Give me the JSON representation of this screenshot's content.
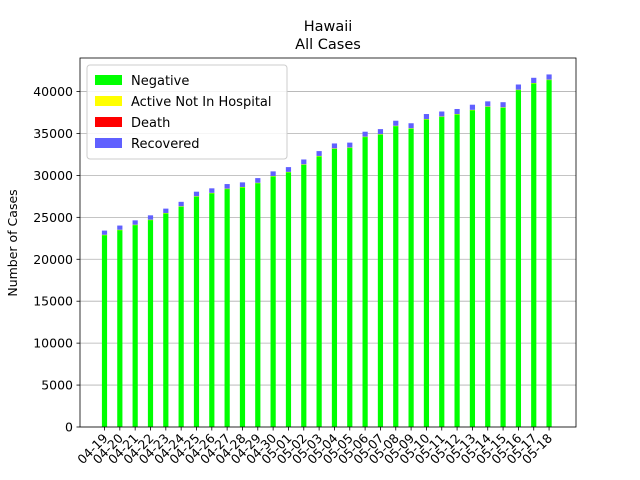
{
  "chart_data": {
    "type": "bar",
    "stacked": true,
    "title": "Hawaii",
    "subtitle": "All Cases",
    "xlabel": "",
    "ylabel": "Number of Cases",
    "ylim": [
      0,
      44000
    ],
    "yticks": [
      0,
      5000,
      10000,
      15000,
      20000,
      25000,
      30000,
      35000,
      40000
    ],
    "grid": "horizontal",
    "legend_position": "top-left",
    "categories": [
      "04-19",
      "04-20",
      "04-21",
      "04-22",
      "04-23",
      "04-24",
      "04-25",
      "04-26",
      "04-27",
      "04-28",
      "04-29",
      "04-30",
      "05-01",
      "05-02",
      "05-03",
      "05-04",
      "05-05",
      "05-06",
      "05-07",
      "05-08",
      "05-09",
      "05-10",
      "05-11",
      "05-12",
      "05-13",
      "05-14",
      "05-15",
      "05-16",
      "05-17",
      "05-18"
    ],
    "series": [
      {
        "name": "Negative",
        "color": "#00ff00",
        "values": [
          22900,
          23500,
          24100,
          24700,
          25500,
          26300,
          27500,
          27900,
          28400,
          28600,
          29100,
          29900,
          30400,
          31300,
          32300,
          33200,
          33300,
          34600,
          34900,
          35900,
          35600,
          36700,
          37000,
          37300,
          37800,
          38200,
          38100,
          40200,
          41000,
          41400
        ]
      },
      {
        "name": "Active Not In Hospital",
        "color": "#ffff00",
        "values": [
          20,
          20,
          20,
          20,
          20,
          20,
          20,
          20,
          20,
          20,
          20,
          20,
          20,
          20,
          20,
          20,
          20,
          20,
          20,
          20,
          20,
          20,
          20,
          20,
          20,
          20,
          20,
          20,
          20,
          20
        ]
      },
      {
        "name": "Death",
        "color": "#ff0000",
        "values": [
          0,
          0,
          0,
          0,
          0,
          0,
          0,
          0,
          0,
          0,
          0,
          0,
          0,
          0,
          0,
          0,
          0,
          0,
          0,
          0,
          0,
          0,
          0,
          0,
          0,
          0,
          0,
          0,
          0,
          0
        ]
      },
      {
        "name": "Recovered",
        "color": "#6060ff",
        "values": [
          500,
          500,
          520,
          520,
          520,
          530,
          540,
          540,
          550,
          550,
          560,
          560,
          570,
          580,
          580,
          590,
          590,
          590,
          600,
          600,
          600,
          600,
          600,
          600,
          610,
          610,
          610,
          620,
          620,
          620
        ]
      }
    ]
  }
}
